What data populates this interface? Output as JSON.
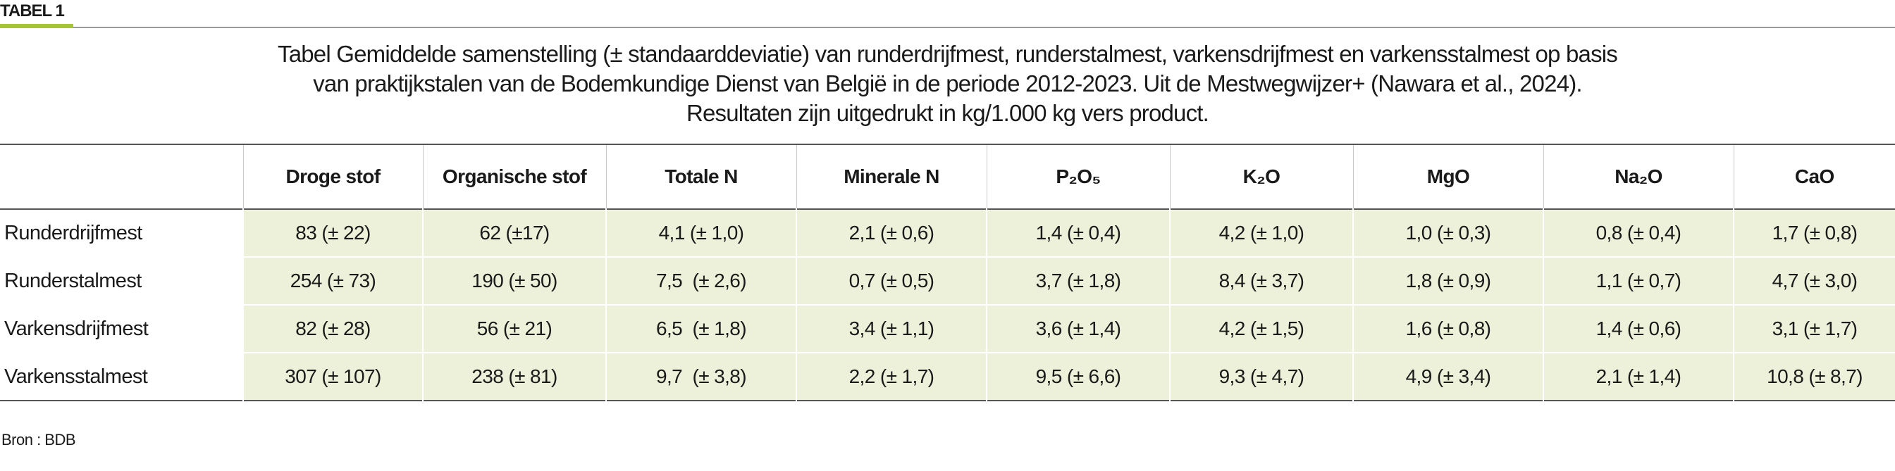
{
  "label": "TABEL 1",
  "title": [
    "Tabel Gemiddelde samenstelling (± standaarddeviatie) van runderdrijfmest, runderstalmest, varkensdrijfmest en varkensstalmest op basis",
    "van praktijkstalen van de Bodemkundige Dienst van België in de periode 2012-2023. Uit de Mestwegwijzer+ (Nawara et al., 2024).",
    "Resultaten zijn uitgedrukt in kg/1.000 kg vers product."
  ],
  "table": {
    "header": [
      "Droge stof",
      "Organische stof",
      "Totale N",
      "Minerale N",
      "P₂O₅",
      "K₂O",
      "MgO",
      "Na₂O",
      "CaO"
    ],
    "rows": [
      {
        "label": "Runderdrijfmest",
        "cells": [
          "83 (± 22)",
          "62 (±17)",
          "4,1 (± 1,0)",
          "2,1 (± 0,6)",
          "1,4 (± 0,4)",
          "4,2 (± 1,0)",
          "1,0 (± 0,3)",
          "0,8 (± 0,4)",
          "1,7 (± 0,8)"
        ]
      },
      {
        "label": "Runderstalmest",
        "cells": [
          "254 (± 73)",
          "190 (± 50)",
          "7,5  (± 2,6)",
          "0,7 (± 0,5)",
          "3,7 (± 1,8)",
          "8,4 (± 3,7)",
          "1,8 (± 0,9)",
          "1,1 (± 0,7)",
          "4,7 (± 3,0)"
        ]
      },
      {
        "label": "Varkensdrijfmest",
        "cells": [
          "82 (± 28)",
          "56 (± 21)",
          "6,5  (± 1,8)",
          "3,4 (± 1,1)",
          "3,6 (± 1,4)",
          "4,2 (± 1,5)",
          "1,6 (± 0,8)",
          "1,4 (± 0,6)",
          "3,1 (± 1,7)"
        ]
      },
      {
        "label": "Varkensstalmest",
        "cells": [
          "307 (± 107)",
          "238 (± 81)",
          "9,7  (± 3,8)",
          "2,2 (± 1,7)",
          "9,5 (± 6,6)",
          "9,3 (± 4,7)",
          "4,9 (± 3,4)",
          "2,1 (± 1,4)",
          "10,8 (± 8,7)"
        ]
      }
    ]
  },
  "source": "Bron : BDB"
}
